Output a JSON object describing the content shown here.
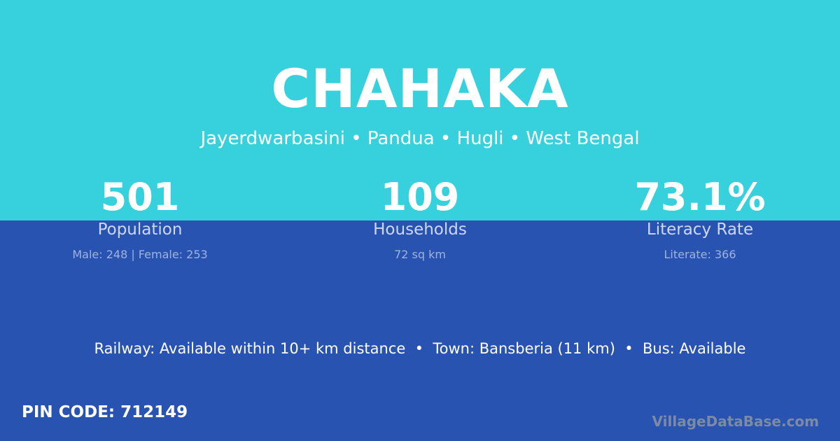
{
  "colors": {
    "top_bg": "#37d1dd",
    "bottom_bg": "#2953b1"
  },
  "title": "CHAHAKA",
  "subtitle": "Jayerdwarbasini • Pandua • Hugli • West Bengal",
  "stats": [
    {
      "value": "501",
      "label": "Population",
      "detail": "Male: 248 | Female: 253"
    },
    {
      "value": "109",
      "label": "Households",
      "detail": "72 sq km"
    },
    {
      "value": "73.1%",
      "label": "Literacy Rate",
      "detail": "Literate: 366"
    }
  ],
  "info": "Railway: Available within 10+ km distance  •  Town: Bansberia (11 km)  •  Bus: Available",
  "pin": "PIN CODE: 712149",
  "watermark": "VillageDataBase.com"
}
